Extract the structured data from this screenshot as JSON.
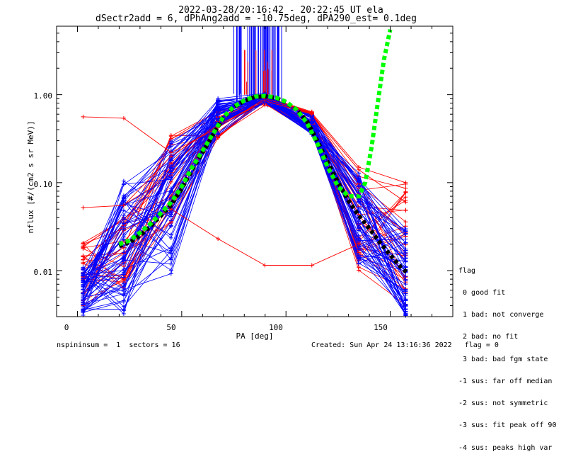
{
  "title": {
    "line1": "2022-03-28/20:16:42 - 20:22:45 UT ela",
    "line2": "dSectr2add = 6, dPhAng2add = -10.75deg, dPA290_est=   0.1deg"
  },
  "footer": {
    "left": "nspininsum =  1  sectors = 16",
    "right": "Created: Sun Apr 24 13:16:36 2022   flag = 0"
  },
  "flag_legend": {
    "title": "flag",
    "items": [
      " 0 good fit",
      " 1 bad: not converge",
      " 2 bad: no fit",
      " 3 bad: bad fgm state",
      "-1 sus: far off median",
      "-2 sus: not symmetric",
      "-3 sus: fit peak off 90",
      "-4 sus: peaks high var"
    ]
  },
  "chart_data": {
    "type": "line",
    "xlabel": "PA [deg]",
    "ylabel": "nflux [#/(cm2 s sr MeV)]",
    "xlim": [
      -10,
      180
    ],
    "ylim": [
      0.003,
      6
    ],
    "yscale": "log",
    "x_ticks": [
      "0",
      "50",
      "100",
      "150"
    ],
    "y_ticks": [
      "0.01",
      "0.10",
      "1.00"
    ],
    "colors": {
      "blue": "#0000ff",
      "red": "#ff0000",
      "fit": "#00ff00",
      "median": "#000000"
    },
    "pa_bins": [
      2.7,
      22.2,
      44.9,
      67.4,
      89.9,
      112.4,
      134.9,
      157.4
    ],
    "blue_bundle": {
      "upper": [
        0.011,
        0.11,
        0.3,
        0.95,
        1.05,
        0.6,
        0.13,
        0.03
      ],
      "lower": [
        0.003,
        0.003,
        0.009,
        0.35,
        0.8,
        0.35,
        0.012,
        0.003
      ]
    },
    "red_bundle": {
      "upper": [
        0.022,
        0.06,
        0.35,
        0.65,
        1.0,
        0.65,
        0.12,
        0.1
      ],
      "lower": [
        0.004,
        0.006,
        0.03,
        0.32,
        0.75,
        0.35,
        0.01,
        0.004
      ]
    },
    "red_outliers": [
      {
        "x": [
          2.7,
          22.2,
          44.9,
          67.4,
          89.9,
          112.4,
          134.9,
          157.4
        ],
        "y": [
          0.56,
          0.54,
          0.22,
          0.42,
          0.9,
          0.62,
          0.15,
          0.1
        ]
      },
      {
        "x": [
          2.7,
          22.2,
          44.9,
          67.4,
          89.9,
          112.4,
          134.9,
          157.4
        ],
        "y": [
          0.052,
          0.055,
          0.2,
          0.45,
          0.85,
          0.6,
          0.14,
          0.06
        ]
      },
      {
        "x": [
          44.9,
          67.4,
          89.9,
          112.4,
          134.9
        ],
        "y": [
          0.05,
          0.023,
          0.0115,
          0.0115,
          0.02
        ]
      }
    ],
    "median_series": {
      "x": [
        20,
        25,
        30,
        35,
        40,
        45,
        50,
        55,
        60,
        65,
        70,
        75,
        80,
        85,
        90,
        95,
        100,
        105,
        110,
        115,
        120,
        125,
        130,
        135,
        140,
        145,
        150,
        155,
        158
      ],
      "y": [
        0.019,
        0.021,
        0.025,
        0.032,
        0.042,
        0.056,
        0.085,
        0.14,
        0.22,
        0.35,
        0.55,
        0.72,
        0.85,
        0.94,
        0.96,
        0.92,
        0.82,
        0.68,
        0.5,
        0.3,
        0.17,
        0.1,
        0.062,
        0.042,
        0.03,
        0.021,
        0.015,
        0.011,
        0.0095
      ]
    },
    "fit_series": {
      "x": [
        20,
        25,
        30,
        35,
        40,
        45,
        50,
        55,
        60,
        65,
        70,
        75,
        80,
        85,
        90,
        95,
        100,
        105,
        110,
        115,
        120,
        125,
        130,
        135,
        138,
        141,
        144,
        147,
        150
      ],
      "y": [
        0.02,
        0.022,
        0.027,
        0.034,
        0.045,
        0.06,
        0.09,
        0.15,
        0.23,
        0.36,
        0.56,
        0.73,
        0.86,
        0.95,
        0.97,
        0.93,
        0.83,
        0.68,
        0.48,
        0.28,
        0.15,
        0.09,
        0.07,
        0.07,
        0.1,
        0.25,
        0.8,
        2.5,
        5.5
      ]
    },
    "blue_spikes_range": [
      75,
      98
    ],
    "red_spikes_range": [
      80,
      95
    ]
  }
}
